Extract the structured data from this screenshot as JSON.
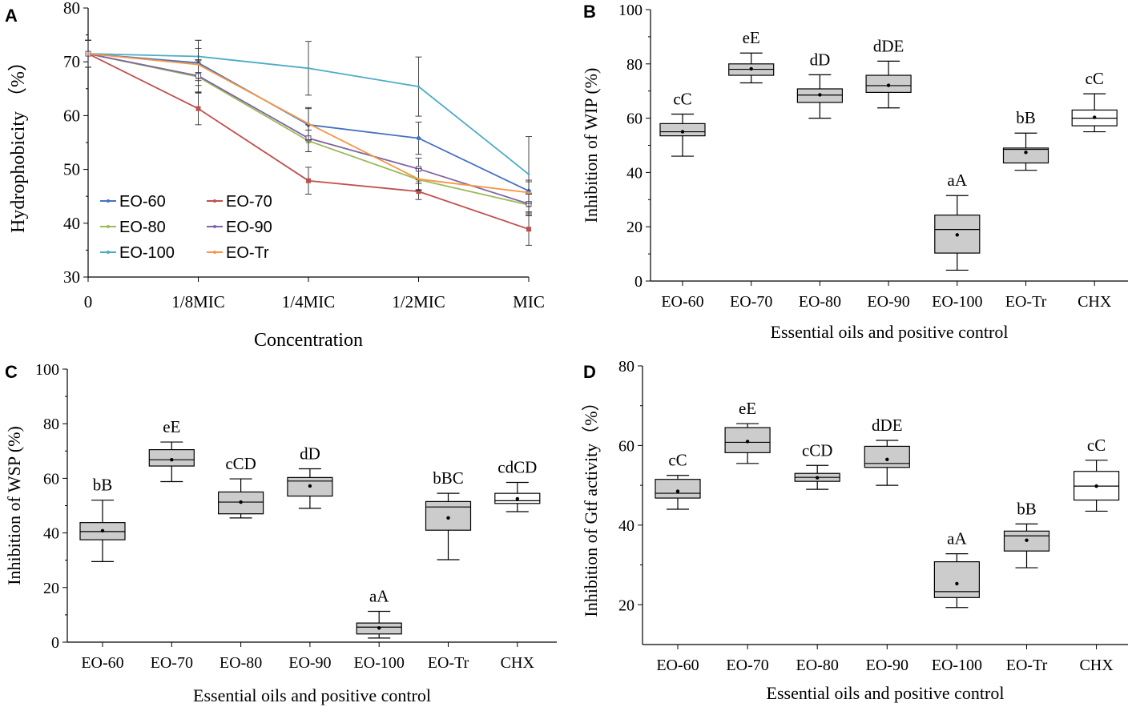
{
  "chart_data": [
    {
      "panel": "A",
      "type": "line",
      "title": "",
      "xlabel": "Concentration",
      "ylabel": "Hydrophobicity （%）",
      "categories": [
        "0",
        "1/8MIC",
        "1/4MIC",
        "1/2MIC",
        "MIC"
      ],
      "ylim": [
        30,
        80
      ],
      "yticks": [
        30,
        40,
        50,
        60,
        70,
        80
      ],
      "legend_position": "bottom-left",
      "series": [
        {
          "name": "EO-60",
          "color": "#4472C4",
          "marker": "diamond",
          "values": [
            71.5,
            69.8,
            58.3,
            55.8,
            46.0
          ],
          "errors": [
            2.5,
            4.2,
            3.0,
            3.0,
            2.0
          ]
        },
        {
          "name": "EO-70",
          "color": "#C0504D",
          "marker": "square",
          "values": [
            71.5,
            61.3,
            47.9,
            45.9,
            38.9
          ],
          "errors": [
            2.5,
            3.0,
            2.5,
            1.5,
            3.0
          ]
        },
        {
          "name": "EO-80",
          "color": "#9BBB59",
          "marker": "triangle",
          "values": [
            71.5,
            67.2,
            55.3,
            48.1,
            43.4
          ],
          "errors": [
            2.5,
            3.0,
            2.0,
            2.0,
            2.0
          ]
        },
        {
          "name": "EO-90",
          "color": "#8064A2",
          "marker": "square-open",
          "values": [
            71.5,
            67.4,
            55.8,
            50.1,
            43.6
          ],
          "errors": [
            2.5,
            3.0,
            2.5,
            2.0,
            2.0
          ]
        },
        {
          "name": "EO-100",
          "color": "#4BACC6",
          "marker": "none",
          "values": [
            71.5,
            71.0,
            68.8,
            65.4,
            49.1
          ],
          "errors": [
            2.5,
            3.0,
            5.0,
            5.5,
            7.0
          ]
        },
        {
          "name": "EO-Tr",
          "color": "#F79646",
          "marker": "none",
          "values": [
            71.5,
            69.5,
            58.5,
            48.2,
            45.7
          ],
          "errors": [
            2.5,
            3.0,
            3.0,
            2.0,
            2.0
          ]
        }
      ]
    },
    {
      "panel": "B",
      "type": "box",
      "xlabel": "Essential oils and positive control",
      "ylabel": "Inhibition of WIP (%)",
      "ylim": [
        0,
        100
      ],
      "yticks": [
        0,
        20,
        40,
        60,
        80,
        100
      ],
      "categories": [
        "EO-60",
        "EO-70",
        "EO-80",
        "EO-90",
        "EO-100",
        "EO-Tr",
        "CHX"
      ],
      "boxes": [
        {
          "min": 46,
          "q1": 53.5,
          "median": 55,
          "q3": 58,
          "max": 61.5,
          "mean": 55,
          "label": "cC",
          "fill": "#cccccc"
        },
        {
          "min": 73,
          "q1": 75.8,
          "median": 78,
          "q3": 80,
          "max": 84,
          "mean": 78.2,
          "label": "eE",
          "fill": "#cccccc"
        },
        {
          "min": 60,
          "q1": 65.8,
          "median": 68.5,
          "q3": 70.8,
          "max": 76,
          "mean": 68.6,
          "label": "dD",
          "fill": "#cccccc"
        },
        {
          "min": 63.8,
          "q1": 69.5,
          "median": 72,
          "q3": 75.8,
          "max": 81,
          "mean": 72.1,
          "label": "dDE",
          "fill": "#cccccc"
        },
        {
          "min": 4,
          "q1": 10.3,
          "median": 19,
          "q3": 24.3,
          "max": 31.5,
          "mean": 17,
          "label": "aA",
          "fill": "#cccccc"
        },
        {
          "min": 40.8,
          "q1": 43.5,
          "median": 48.5,
          "q3": 49,
          "max": 54.5,
          "mean": 47.4,
          "label": "bB",
          "fill": "#cccccc"
        },
        {
          "min": 55,
          "q1": 57.2,
          "median": 60,
          "q3": 63,
          "max": 69,
          "mean": 60.3,
          "label": "cC",
          "fill": "#ffffff"
        }
      ]
    },
    {
      "panel": "C",
      "type": "box",
      "xlabel": "Essential oils and positive control",
      "ylabel": "Inhibition of WSP (%)",
      "ylim": [
        0,
        100
      ],
      "yticks": [
        0,
        20,
        40,
        60,
        80,
        100
      ],
      "categories": [
        "EO-60",
        "EO-70",
        "EO-80",
        "EO-90",
        "EO-100",
        "EO-Tr",
        "CHX"
      ],
      "boxes": [
        {
          "min": 29.5,
          "q1": 37.5,
          "median": 40.5,
          "q3": 43.8,
          "max": 52,
          "mean": 40.8,
          "label": "bB",
          "fill": "#cccccc"
        },
        {
          "min": 58.8,
          "q1": 64.5,
          "median": 66.8,
          "q3": 70.5,
          "max": 73.3,
          "mean": 66.8,
          "label": "eE",
          "fill": "#cccccc"
        },
        {
          "min": 45.5,
          "q1": 47,
          "median": 51.3,
          "q3": 55,
          "max": 59.8,
          "mean": 51.3,
          "label": "cCD",
          "fill": "#cccccc"
        },
        {
          "min": 49,
          "q1": 53.5,
          "median": 59,
          "q3": 60.3,
          "max": 63.5,
          "mean": 57.2,
          "label": "dD",
          "fill": "#cccccc"
        },
        {
          "min": 1.5,
          "q1": 3,
          "median": 5.5,
          "q3": 7,
          "max": 11.3,
          "mean": 5.2,
          "label": "aA",
          "fill": "#cccccc"
        },
        {
          "min": 30.2,
          "q1": 41,
          "median": 49.5,
          "q3": 51.5,
          "max": 54.5,
          "mean": 45.5,
          "label": "bBC",
          "fill": "#cccccc"
        },
        {
          "min": 47.8,
          "q1": 50.8,
          "median": 51.8,
          "q3": 54.5,
          "max": 58.5,
          "mean": 52.5,
          "label": "cdCD",
          "fill": "#ffffff"
        }
      ]
    },
    {
      "panel": "D",
      "type": "box",
      "xlabel": "Essential oils and positive control",
      "ylabel": "Inhibition of Gtf activity（%）",
      "ylim": [
        10,
        80
      ],
      "yticks": [
        20,
        40,
        60,
        80
      ],
      "categories": [
        "EO-60",
        "EO-70",
        "EO-80",
        "EO-90",
        "EO-100",
        "EO-Tr",
        "CHX"
      ],
      "boxes": [
        {
          "min": 44,
          "q1": 46.8,
          "median": 48,
          "q3": 51.5,
          "max": 52.5,
          "mean": 48.5,
          "label": "cC",
          "fill": "#cccccc"
        },
        {
          "min": 55.5,
          "q1": 58.2,
          "median": 60.8,
          "q3": 64.5,
          "max": 65.5,
          "mean": 61,
          "label": "eE",
          "fill": "#cccccc"
        },
        {
          "min": 49,
          "q1": 51,
          "median": 52,
          "q3": 53,
          "max": 55,
          "mean": 51.9,
          "label": "cCD",
          "fill": "#cccccc"
        },
        {
          "min": 50,
          "q1": 54.5,
          "median": 55.5,
          "q3": 59.8,
          "max": 61.3,
          "mean": 56.5,
          "label": "dDE",
          "fill": "#cccccc"
        },
        {
          "min": 19.3,
          "q1": 21.8,
          "median": 23.3,
          "q3": 30.8,
          "max": 32.8,
          "mean": 25.3,
          "label": "aA",
          "fill": "#cccccc"
        },
        {
          "min": 29.3,
          "q1": 33.5,
          "median": 37.3,
          "q3": 38.5,
          "max": 40.3,
          "mean": 36.2,
          "label": "bB",
          "fill": "#cccccc"
        },
        {
          "min": 43.5,
          "q1": 46.3,
          "median": 49.8,
          "q3": 53.5,
          "max": 56.3,
          "mean": 49.8,
          "label": "cC",
          "fill": "#ffffff"
        }
      ]
    }
  ]
}
